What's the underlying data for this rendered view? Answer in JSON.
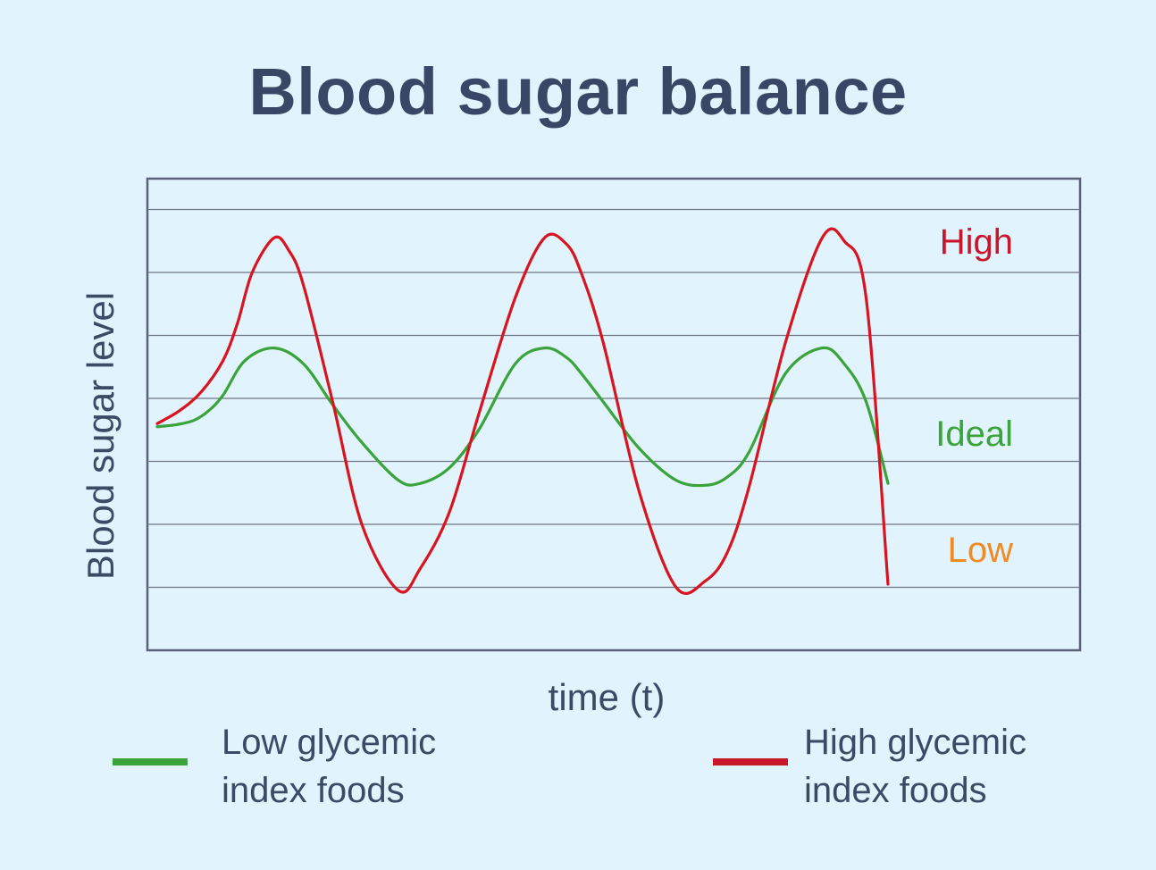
{
  "chart_data": {
    "type": "line",
    "title": "Blood sugar balance",
    "xlabel": "time (t)",
    "ylabel": "Blood sugar level",
    "xlim": [
      0,
      10
    ],
    "ylim": [
      0,
      7.5
    ],
    "grid": true,
    "level_labels": [
      {
        "text": "High",
        "y": 6.5,
        "color": "#c8162b"
      },
      {
        "text": "Ideal",
        "y": 3.45,
        "color": "#3aa33a"
      },
      {
        "text": "Low",
        "y": 1.6,
        "color": "#f08a24"
      }
    ],
    "series": [
      {
        "name": "Low glycemic index foods",
        "color": "#3aa33a",
        "x": [
          0,
          0.25,
          0.5,
          0.7,
          0.9,
          1.2,
          1.6,
          2.0,
          2.4,
          2.8,
          3.3,
          3.6,
          4.0,
          4.4,
          4.9,
          5.3,
          5.6,
          5.8,
          6.1,
          6.6,
          7.1,
          7.5,
          7.8,
          8.1,
          8.6,
          9.1,
          9.4,
          9.7,
          10.0
        ],
        "y": [
          3.55,
          3.58,
          3.65,
          3.8,
          4.05,
          4.6,
          4.8,
          4.55,
          3.9,
          3.3,
          2.7,
          2.65,
          2.9,
          3.5,
          4.55,
          4.8,
          4.65,
          4.4,
          3.95,
          3.2,
          2.7,
          2.62,
          2.75,
          3.15,
          4.4,
          4.8,
          4.55,
          3.95,
          2.65
        ]
      },
      {
        "name": "High glycemic index foods",
        "color": "#d8141f",
        "x": [
          0,
          0.3,
          0.6,
          0.9,
          1.1,
          1.3,
          1.6,
          1.8,
          2.0,
          2.4,
          2.8,
          3.3,
          3.6,
          4.0,
          4.4,
          4.9,
          5.3,
          5.6,
          5.8,
          6.1,
          6.6,
          7.1,
          7.5,
          7.8,
          8.1,
          8.6,
          9.1,
          9.4,
          9.7,
          10.0
        ],
        "y": [
          3.6,
          3.8,
          4.1,
          4.6,
          5.2,
          6.0,
          6.55,
          6.35,
          5.8,
          3.95,
          2.0,
          0.95,
          1.3,
          2.2,
          3.75,
          5.6,
          6.55,
          6.45,
          6.0,
          4.9,
          2.5,
          1.0,
          1.1,
          1.55,
          2.6,
          4.9,
          6.55,
          6.5,
          5.6,
          1.05
        ]
      }
    ]
  },
  "legend": {
    "low_line1": "Low glycemic",
    "low_line2": "index foods",
    "high_line1": "High glycemic",
    "high_line2": "index foods"
  }
}
